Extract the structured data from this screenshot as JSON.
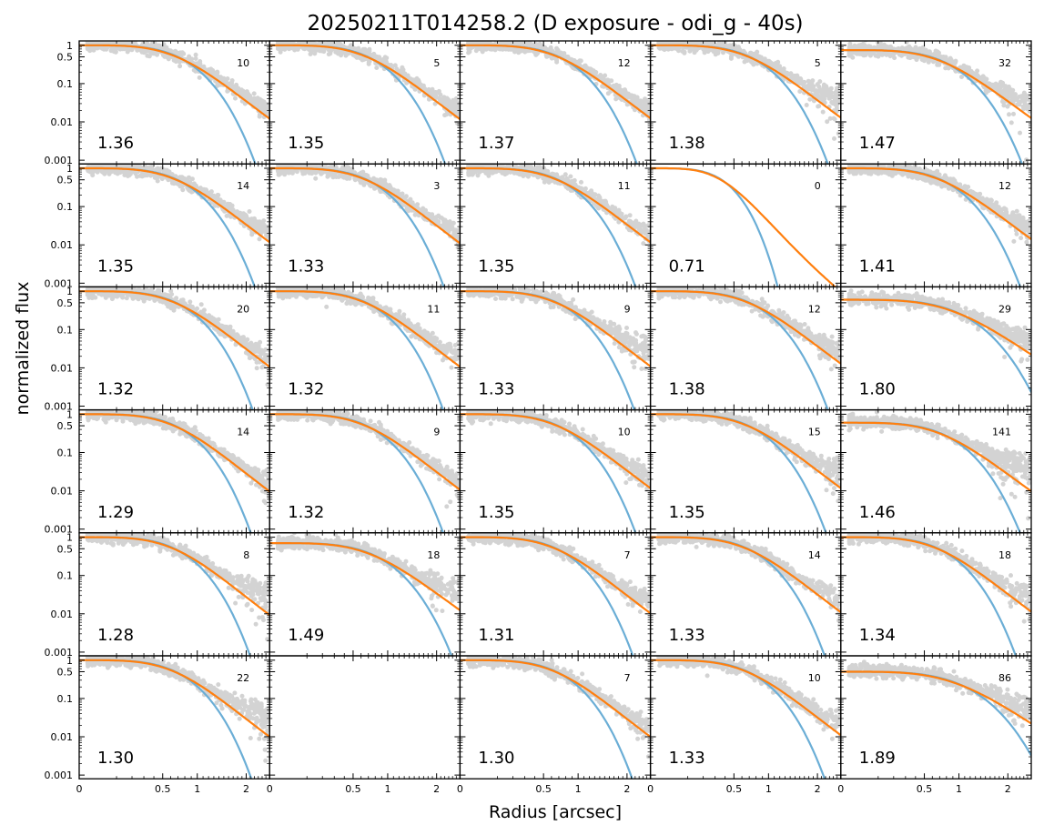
{
  "figure": {
    "title": "20250211T014258.2 (D exposure - odi_g - 40s)",
    "xlabel": "Radius [arcsec]",
    "ylabel": "normalized flux"
  },
  "colors": {
    "points": "#808080",
    "moffat": "#ff7f0e",
    "gauss": "#6baed6"
  },
  "chart_data": {
    "type": "scatter",
    "layout": {
      "rows": 6,
      "cols": 5,
      "sharex": true,
      "sharey": true
    },
    "xscale": "sqrt",
    "xlim": [
      0,
      2.6
    ],
    "xticks": [
      0,
      0.5,
      1,
      2
    ],
    "xtick_labels": [
      "0",
      "0.5",
      "1",
      "2"
    ],
    "yscale": "log",
    "ylim": [
      0.0008,
      1.3
    ],
    "yticks": [
      1,
      0.5,
      0.1,
      0.01,
      0.001
    ],
    "ytick_labels": [
      "1",
      "0.5",
      "0.1",
      "0.01",
      "0.001"
    ],
    "series_names": [],
    "panels": [
      {
        "fwhm": "1.36",
        "count": "10",
        "scale": 1.36,
        "noise": 0.012,
        "core": 1.0
      },
      {
        "fwhm": "1.35",
        "count": "5",
        "scale": 1.35,
        "noise": 0.012,
        "core": 1.0
      },
      {
        "fwhm": "1.37",
        "count": "12",
        "scale": 1.37,
        "noise": 0.012,
        "core": 1.0
      },
      {
        "fwhm": "1.38",
        "count": "5",
        "scale": 1.38,
        "noise": 0.045,
        "core": 1.0
      },
      {
        "fwhm": "1.47",
        "count": "32",
        "scale": 1.47,
        "noise": 0.03,
        "core": 0.75
      },
      {
        "fwhm": "1.35",
        "count": "14",
        "scale": 1.35,
        "noise": 0.012,
        "core": 1.0
      },
      {
        "fwhm": "1.33",
        "count": "3",
        "scale": 1.33,
        "noise": 0.012,
        "core": 1.0
      },
      {
        "fwhm": "1.35",
        "count": "11",
        "scale": 1.35,
        "noise": 0.012,
        "core": 1.0
      },
      {
        "fwhm": "0.71",
        "count": "0",
        "scale": 0.71,
        "noise": 0,
        "core": 1.0,
        "empty": true
      },
      {
        "fwhm": "1.41",
        "count": "12",
        "scale": 1.41,
        "noise": 0.02,
        "core": 1.0
      },
      {
        "fwhm": "1.32",
        "count": "20",
        "scale": 1.32,
        "noise": 0.012,
        "core": 1.0
      },
      {
        "fwhm": "1.32",
        "count": "11",
        "scale": 1.32,
        "noise": 0.015,
        "core": 1.0
      },
      {
        "fwhm": "1.33",
        "count": "9",
        "scale": 1.33,
        "noise": 0.04,
        "core": 1.0
      },
      {
        "fwhm": "1.38",
        "count": "12",
        "scale": 1.38,
        "noise": 0.02,
        "core": 1.0
      },
      {
        "fwhm": "1.80",
        "count": "29",
        "scale": 1.8,
        "noise": 0.05,
        "core": 0.6
      },
      {
        "fwhm": "1.29",
        "count": "14",
        "scale": 1.29,
        "noise": 0.012,
        "core": 1.0
      },
      {
        "fwhm": "1.32",
        "count": "9",
        "scale": 1.32,
        "noise": 0.015,
        "core": 1.0
      },
      {
        "fwhm": "1.35",
        "count": "10",
        "scale": 1.35,
        "noise": 0.02,
        "core": 1.0
      },
      {
        "fwhm": "1.35",
        "count": "15",
        "scale": 1.35,
        "noise": 0.03,
        "core": 1.0
      },
      {
        "fwhm": "1.46",
        "count": "141",
        "scale": 1.46,
        "noise": 0.05,
        "core": 0.6
      },
      {
        "fwhm": "1.28",
        "count": "8",
        "scale": 1.28,
        "noise": 0.04,
        "core": 1.0
      },
      {
        "fwhm": "1.49",
        "count": "18",
        "scale": 1.49,
        "noise": 0.05,
        "core": 0.7
      },
      {
        "fwhm": "1.31",
        "count": "7",
        "scale": 1.31,
        "noise": 0.015,
        "core": 1.0
      },
      {
        "fwhm": "1.33",
        "count": "14",
        "scale": 1.33,
        "noise": 0.02,
        "core": 1.0
      },
      {
        "fwhm": "1.34",
        "count": "18",
        "scale": 1.34,
        "noise": 0.03,
        "core": 1.0
      },
      {
        "fwhm": "1.30",
        "count": "22",
        "scale": 1.3,
        "noise": 0.04,
        "core": 1.0
      },
      {
        "fwhm": "",
        "count": "",
        "scale": 1.0,
        "noise": 0,
        "core": 1.0,
        "empty": true,
        "no_curves": true
      },
      {
        "fwhm": "1.30",
        "count": "7",
        "scale": 1.3,
        "noise": 0.012,
        "core": 1.0
      },
      {
        "fwhm": "1.33",
        "count": "10",
        "scale": 1.33,
        "noise": 0.02,
        "core": 1.0
      },
      {
        "fwhm": "1.89",
        "count": "86",
        "scale": 1.89,
        "noise": 0.06,
        "core": 0.5
      }
    ]
  }
}
